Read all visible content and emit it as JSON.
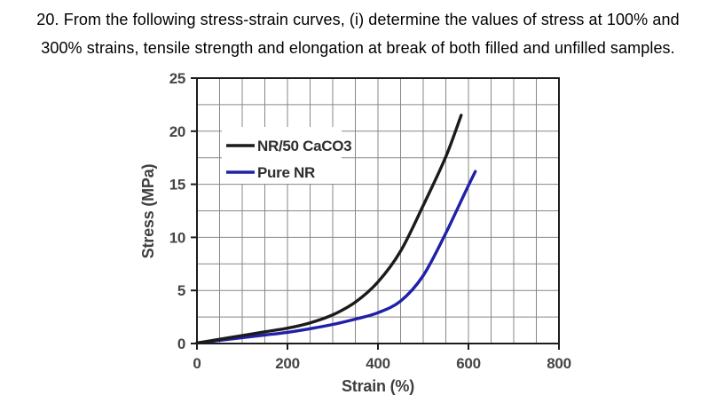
{
  "question": {
    "line1": "20. From the following stress-strain curves, (i) determine the values of stress at 100% and",
    "line2": "300% strains, tensile strength and elongation at break of both filled and unfilled samples."
  },
  "chart_data": {
    "type": "line",
    "title": "",
    "xlabel": "Strain (%)",
    "ylabel": "Stress (MPa)",
    "xlim": [
      0,
      800
    ],
    "ylim": [
      0,
      25
    ],
    "x_major_ticks": [
      0,
      200,
      400,
      600,
      800
    ],
    "y_major_ticks": [
      0,
      5,
      10,
      15,
      20,
      25
    ],
    "x_grid_step": 50,
    "y_grid_step": 2.5,
    "grid": true,
    "legend_position": "upper-left-inside",
    "series": [
      {
        "name": "NR/50 CaCO3",
        "color": "#1b1b1b",
        "x": [
          0,
          50,
          100,
          150,
          200,
          250,
          300,
          350,
          400,
          450,
          500,
          550,
          584
        ],
        "y": [
          0.05,
          0.4,
          0.75,
          1.1,
          1.45,
          1.95,
          2.7,
          3.9,
          5.8,
          8.7,
          13.0,
          17.6,
          21.5
        ]
      },
      {
        "name": "Pure NR",
        "color": "#2020a8",
        "x": [
          0,
          50,
          100,
          150,
          200,
          250,
          300,
          350,
          400,
          450,
          500,
          550,
          590,
          615
        ],
        "y": [
          0.05,
          0.3,
          0.55,
          0.8,
          1.05,
          1.4,
          1.8,
          2.3,
          2.9,
          4.0,
          6.4,
          10.4,
          14.0,
          16.2
        ]
      }
    ],
    "colors": {
      "grid": "#878787",
      "axis": "#1c1c1c",
      "tick_label": "#454545",
      "axis_title": "#3f3f3f",
      "legend_text": "#2e2e2e",
      "plot_background": "#ffffff"
    }
  }
}
